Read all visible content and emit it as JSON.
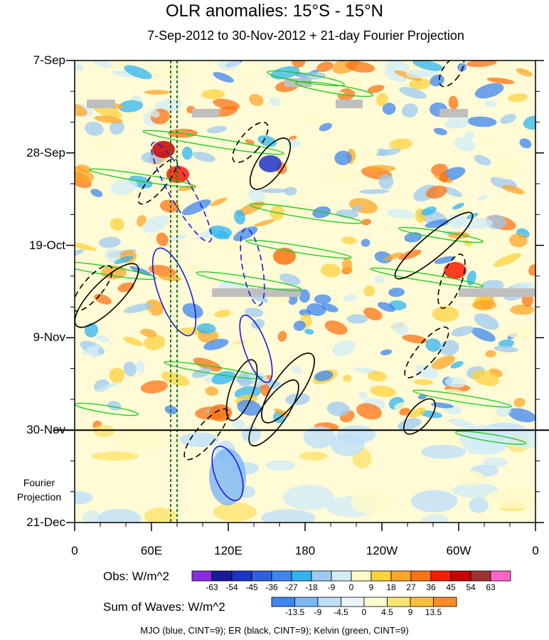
{
  "chart_data": {
    "type": "heatmap",
    "title": "OLR anomalies: 15°S - 15°N",
    "subtitle": "7-Sep-2012 to 30-Nov-2012 + 21-day Fourier Projection",
    "y_tick_labels": [
      "7-Sep",
      "28-Sep",
      "19-Oct",
      "9-Nov",
      "30-Nov",
      "21-Dec"
    ],
    "x_tick_labels": [
      "0",
      "60E",
      "120E",
      "180",
      "120W",
      "60W",
      "0"
    ],
    "xlim_lon": [
      0,
      360
    ],
    "ylim_days": [
      0,
      105
    ],
    "observation_end": "30-Nov",
    "fourier_projection_label": "Fourier\nProjection",
    "obs_legend": {
      "title": "Obs: W/m^2",
      "levels": [
        -63,
        -54,
        -45,
        -36,
        -27,
        -18,
        -9,
        0,
        9,
        18,
        27,
        36,
        45,
        54,
        63
      ],
      "colors": [
        "#8a2be2",
        "#1a1a9a",
        "#1e34c8",
        "#2f5fe0",
        "#3d86f0",
        "#2fb4f0",
        "#9ccaf2",
        "#d2ecf8",
        "#fffac8",
        "#ffd23c",
        "#ffa628",
        "#ff7314",
        "#ff1a00",
        "#c80000",
        "#a03232",
        "#ff64c8"
      ]
    },
    "waves_legend": {
      "title": "Sum of Waves: W/m^2",
      "levels": [
        -13.5,
        -9,
        -4.5,
        0,
        4.5,
        9,
        13.5
      ],
      "colors": [
        "#3d86f0",
        "#7ab8f5",
        "#bee0fa",
        "#e8f6fc",
        "#fffcd2",
        "#ffe46e",
        "#ffbe3c",
        "#ff8c28"
      ]
    },
    "footnote": "MJO (blue, CINT=9); ER (black, CINT=9); Kelvin (green, CINT=9)",
    "lines": [
      {
        "name": "MJO",
        "color": "blue",
        "cint": 9
      },
      {
        "name": "ER",
        "color": "black",
        "cint": 9
      },
      {
        "name": "Kelvin",
        "color": "green",
        "cint": 9
      }
    ],
    "reference_longitudes": [
      75,
      80
    ]
  }
}
